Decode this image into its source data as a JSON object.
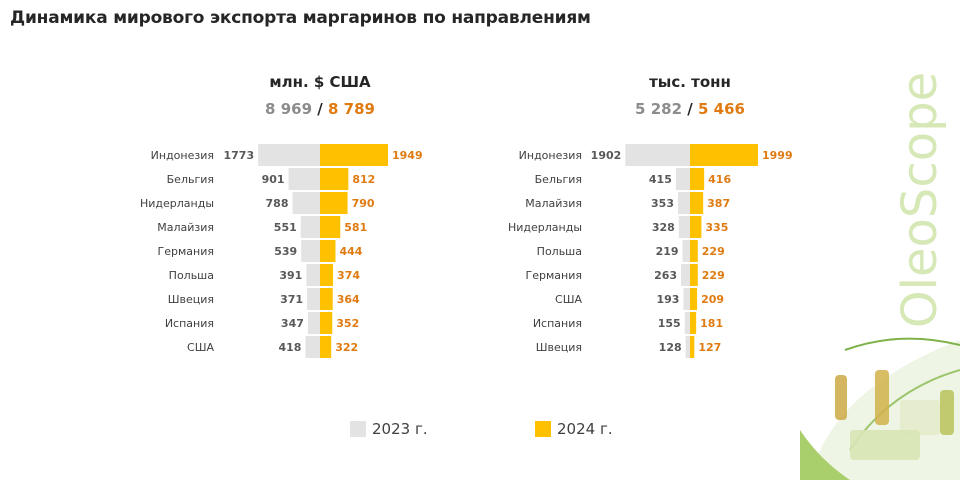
{
  "title": "Динамика мирового экспорта маргаринов по направлениям",
  "brand": "OleoScope",
  "colors": {
    "y2023": "#e3e3e3",
    "y2024": "#ffc000",
    "label2023": "#595959",
    "label2024": "#e07b12"
  },
  "legend": {
    "y2023": "2023 г.",
    "y2024": "2024 г."
  },
  "panels": [
    {
      "unit": "млн. $ США",
      "total_2023": "8 969",
      "separator": "/",
      "total_2024": "8 789"
    },
    {
      "unit": "тыс. тонн",
      "total_2023": "5 282",
      "separator": "/",
      "total_2024": "5 466"
    }
  ],
  "chart_data": [
    {
      "type": "bar",
      "title": "млн. $ США",
      "orientation": "horizontal-butterfly",
      "categories": [
        "Индонезия",
        "Бельгия",
        "Нидерланды",
        "Малайзия",
        "Германия",
        "Польша",
        "Швеция",
        "Испания",
        "США"
      ],
      "series": [
        {
          "name": "2023 г.",
          "values": [
            1773,
            901,
            788,
            551,
            539,
            391,
            371,
            347,
            418
          ]
        },
        {
          "name": "2024 г.",
          "values": [
            1949,
            812,
            790,
            581,
            444,
            374,
            364,
            352,
            322
          ]
        }
      ],
      "xlim": [
        0,
        1949
      ]
    },
    {
      "type": "bar",
      "title": "тыс. тонн",
      "orientation": "horizontal-butterfly",
      "categories": [
        "Индонезия",
        "Бельгия",
        "Малайзия",
        "Нидерланды",
        "Польша",
        "Германия",
        "США",
        "Испания",
        "Швеция"
      ],
      "series": [
        {
          "name": "2023 г.",
          "values": [
            1902,
            415,
            353,
            328,
            219,
            263,
            193,
            155,
            128
          ]
        },
        {
          "name": "2024 г.",
          "values": [
            1999,
            416,
            387,
            335,
            229,
            229,
            209,
            181,
            127
          ]
        }
      ],
      "xlim": [
        0,
        1999
      ]
    }
  ]
}
